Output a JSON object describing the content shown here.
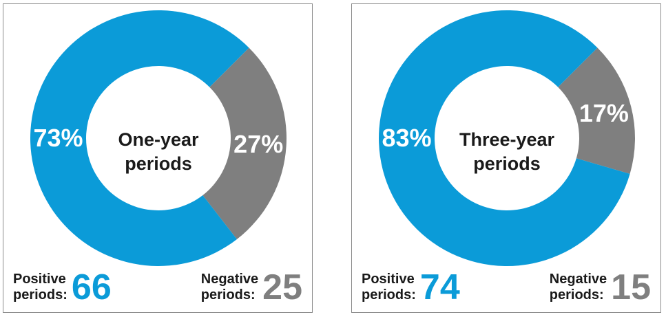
{
  "colors": {
    "positive": "#0b9bd8",
    "negative": "#7f7f7f",
    "text": "#1a1a1a"
  },
  "legend": {
    "positive_line1": "Positive",
    "positive_line2": "periods:",
    "negative_line1": "Negative",
    "negative_line2": "periods:"
  },
  "chart_data": [
    {
      "type": "pie",
      "title_line1": "One-year",
      "title_line2": "periods",
      "slices": [
        {
          "name": "Positive",
          "label": "73%",
          "value": 73
        },
        {
          "name": "Negative",
          "label": "27%",
          "value": 27
        }
      ],
      "positive_count": "66",
      "negative_count": "25"
    },
    {
      "type": "pie",
      "title_line1": "Three-year",
      "title_line2": "periods",
      "slices": [
        {
          "name": "Positive",
          "label": "83%",
          "value": 83
        },
        {
          "name": "Negative",
          "label": "17%",
          "value": 17
        }
      ],
      "positive_count": "74",
      "negative_count": "15"
    }
  ]
}
